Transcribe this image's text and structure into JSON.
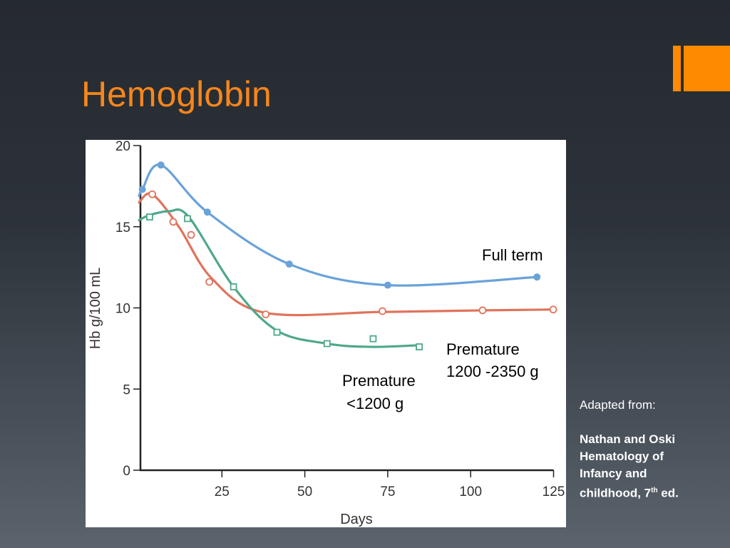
{
  "slide": {
    "title": "Hemoglobin",
    "accent_color": "#fd8a00",
    "title_color": "#f7861b",
    "source": {
      "intro": "Adapted from:",
      "line1": "Nathan and Oski",
      "line2": "Hematology of",
      "line3": "Infancy and",
      "line4_pre": "childhood, 7",
      "line4_sup": "th",
      "line4_post": " ed."
    }
  },
  "chart_data": {
    "type": "line",
    "xlabel": "Days",
    "ylabel": "Hb g/100 mL",
    "xlim": [
      0,
      125
    ],
    "ylim": [
      0,
      20
    ],
    "xticks": [
      "25",
      "50",
      "75",
      "100",
      "125"
    ],
    "yticks": [
      "0",
      "5",
      "10",
      "15",
      "20"
    ],
    "grid": false,
    "annotations": {
      "full_term": "Full term",
      "prem_large_1": "Premature",
      "prem_large_2": "1200 -2350 g",
      "prem_small_1": "Premature",
      "prem_small_2": " <1200 g"
    },
    "series": [
      {
        "name": "Full term",
        "color": "#6aa2d8",
        "marker": "filled-circle",
        "points": [
          [
            1,
            17.3
          ],
          [
            6.6,
            18.8
          ],
          [
            20.6,
            15.9
          ],
          [
            45.3,
            12.7
          ],
          [
            75,
            11.4
          ],
          [
            120,
            11.9
          ]
        ],
        "curve": [
          [
            0,
            16.9
          ],
          [
            1,
            17.3
          ],
          [
            6.6,
            18.8
          ],
          [
            20.6,
            15.9
          ],
          [
            45.3,
            12.7
          ],
          [
            75,
            11.4
          ],
          [
            120,
            11.9
          ]
        ]
      },
      {
        "name": "Premature 1200 -2350 g",
        "color": "#e0735c",
        "marker": "open-circle",
        "points": [
          [
            4,
            17.0
          ],
          [
            10.3,
            15.3
          ],
          [
            15.7,
            14.5
          ],
          [
            21.2,
            11.6
          ],
          [
            38.2,
            9.6
          ],
          [
            73.4,
            9.8
          ],
          [
            103.6,
            9.85
          ],
          [
            124.9,
            9.9
          ]
        ],
        "curve": [
          [
            0,
            16.5
          ],
          [
            4,
            17.0
          ],
          [
            12,
            15.0
          ],
          [
            22,
            11.8
          ],
          [
            38,
            9.7
          ],
          [
            73,
            9.75
          ],
          [
            104,
            9.85
          ],
          [
            125,
            9.9
          ]
        ]
      },
      {
        "name": "Premature <1200 g",
        "color": "#4fa88a",
        "marker": "open-square",
        "points": [
          [
            3.2,
            15.6
          ],
          [
            14.6,
            15.5
          ],
          [
            28.5,
            11.3
          ],
          [
            41.6,
            8.5
          ],
          [
            56.7,
            7.8
          ],
          [
            70.6,
            8.1
          ],
          [
            84.5,
            7.6
          ]
        ],
        "curve": [
          [
            0,
            15.4
          ],
          [
            3,
            15.7
          ],
          [
            9,
            15.95
          ],
          [
            15,
            15.6
          ],
          [
            28.5,
            11.3
          ],
          [
            41.6,
            8.6
          ],
          [
            56.7,
            7.8
          ],
          [
            70,
            7.6
          ],
          [
            84.5,
            7.7
          ]
        ]
      }
    ]
  }
}
